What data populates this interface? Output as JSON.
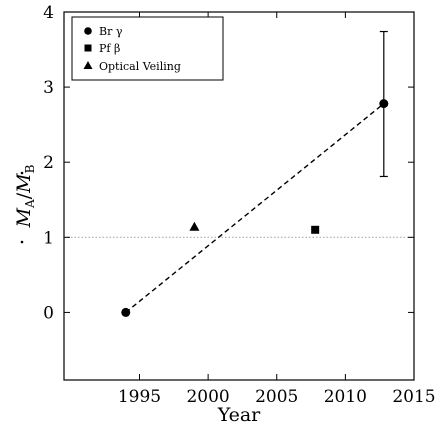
{
  "chart_data": {
    "type": "scatter",
    "xlabel": "Year",
    "ylabel": "Ṁ_A / Ṁ_B",
    "ylabel_parts": {
      "m": "M",
      "a": "A",
      "slash": "/",
      "b": "B"
    },
    "xlim": [
      1989.5,
      2015
    ],
    "ylim": [
      -0.9,
      4
    ],
    "x_ticks": [
      1995,
      2000,
      2005,
      2010,
      2015
    ],
    "y_ticks": [
      0,
      1,
      2,
      3,
      4
    ],
    "x_tick_labels": [
      "1995",
      "2000",
      "2005",
      "2010",
      "2015"
    ],
    "y_tick_labels": [
      "0",
      "1",
      "2",
      "3",
      "4"
    ],
    "grid": false,
    "legend_position": "upper-left",
    "series": [
      {
        "name": "Br γ",
        "marker": "circle",
        "points": [
          {
            "x": 1994.0,
            "y": 0.0
          },
          {
            "x": 2012.8,
            "y": 2.78,
            "yerr_low": 1.81,
            "yerr_high": 3.74
          }
        ]
      },
      {
        "name": "Pf β",
        "marker": "square",
        "points": [
          {
            "x": 2007.8,
            "y": 1.1
          }
        ]
      },
      {
        "name": "Optical Veiling",
        "marker": "triangle",
        "points": [
          {
            "x": 1999.0,
            "y": 1.14
          }
        ]
      }
    ],
    "fit_line": {
      "style": "dashed",
      "from": {
        "x": 1994.0,
        "y": 0.0
      },
      "to": {
        "x": 2012.8,
        "y": 2.78
      }
    },
    "reference_line": {
      "style": "dotted",
      "y": 1.0,
      "color": "#aaaaaa"
    }
  }
}
